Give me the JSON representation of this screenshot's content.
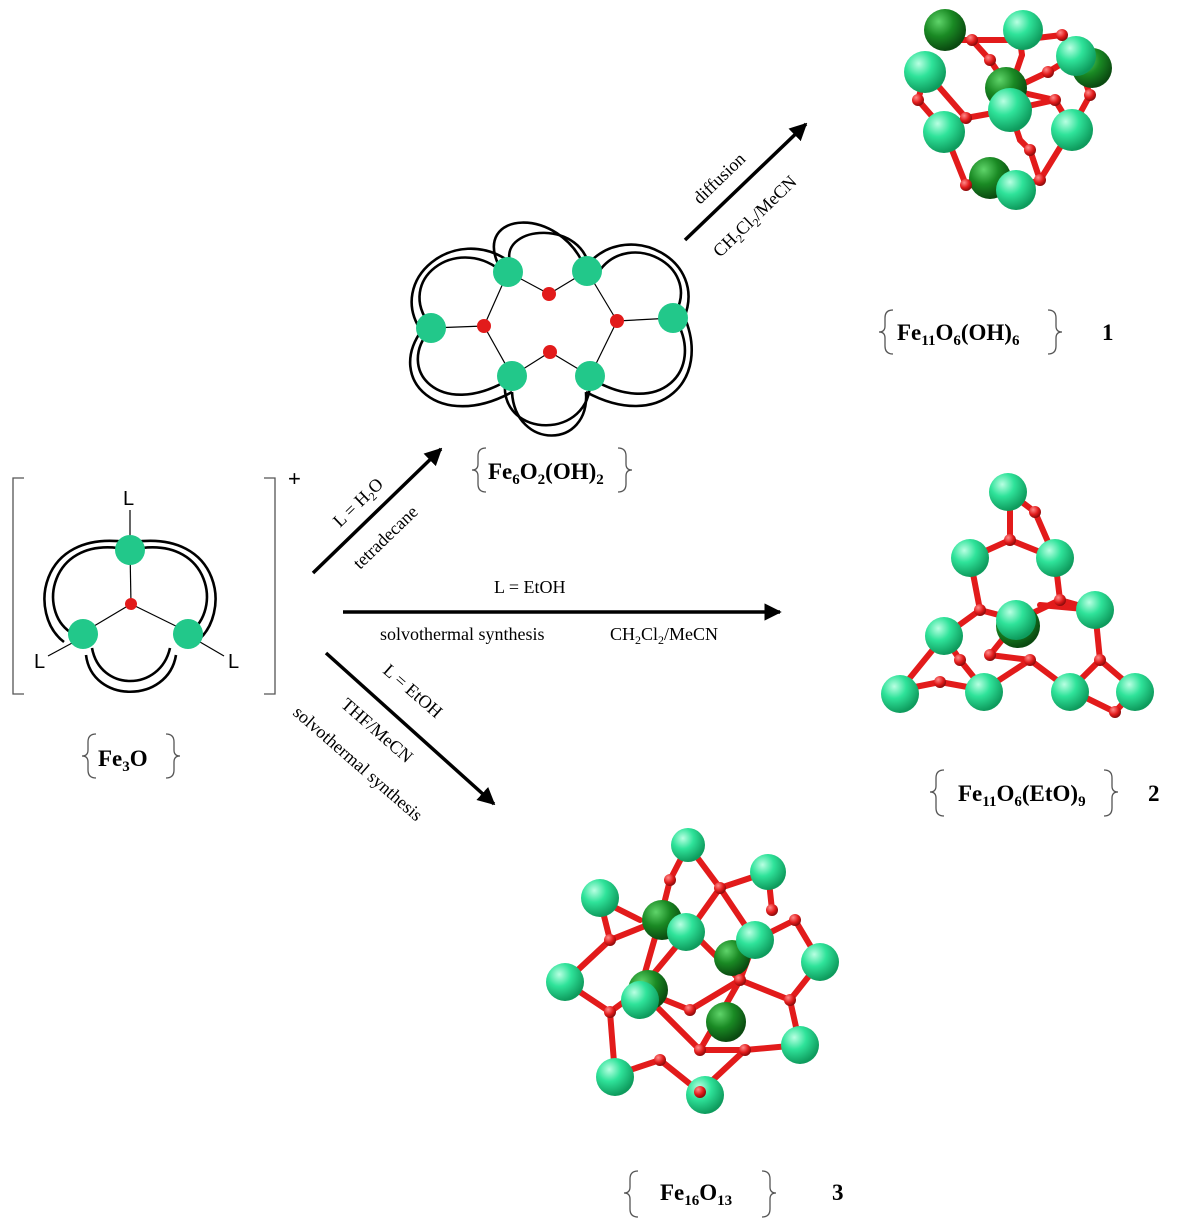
{
  "colors": {
    "fe": "#22d38a",
    "fe_dark": "#117a1c",
    "oxygen": "#e21b1b",
    "bond": "#e21b1b",
    "text": "#000000"
  },
  "left_complex": {
    "ligand_label": "L",
    "charge": "+",
    "caption": {
      "main": "Fe",
      "sub1": "3",
      "tail": "O"
    }
  },
  "intermediate": {
    "caption": {
      "a": "Fe",
      "a_sub": "6",
      "b": "O",
      "b_sub": "2",
      "c": "(OH)",
      "c_sub": "2"
    }
  },
  "arrows": {
    "a1": {
      "line1": "L = H",
      "line1_sub": "2",
      "line1_tail": "O",
      "line2": "tetradecane"
    },
    "a2": {
      "line1": "L = EtOH",
      "line2": "solvothermal synthesis",
      "line3": "CH",
      "line3_sub1": "2",
      "line3_mid": "Cl",
      "line3_sub2": "2",
      "line3_tail": "/MeCN"
    },
    "a3": {
      "line1": "L = EtOH",
      "line2": "THF/MeCN",
      "line3": "solvothermal synthesis"
    },
    "a4": {
      "line1": "diffusion",
      "line2": "CH",
      "line2_sub1": "2",
      "line2_mid": "Cl",
      "line2_sub2": "2",
      "line2_tail": "/MeCN"
    }
  },
  "products": [
    {
      "number": "1",
      "f1": "Fe",
      "s1": "11",
      "f2": "O",
      "s2": "6",
      "f3": "(OH)",
      "s3": "6"
    },
    {
      "number": "2",
      "f1": "Fe",
      "s1": "11",
      "f2": "O",
      "s2": "6",
      "f3": "(EtO)",
      "s3": "9"
    },
    {
      "number": "3",
      "f1": "Fe",
      "s1": "16",
      "f2": "O",
      "s2": "13"
    }
  ]
}
